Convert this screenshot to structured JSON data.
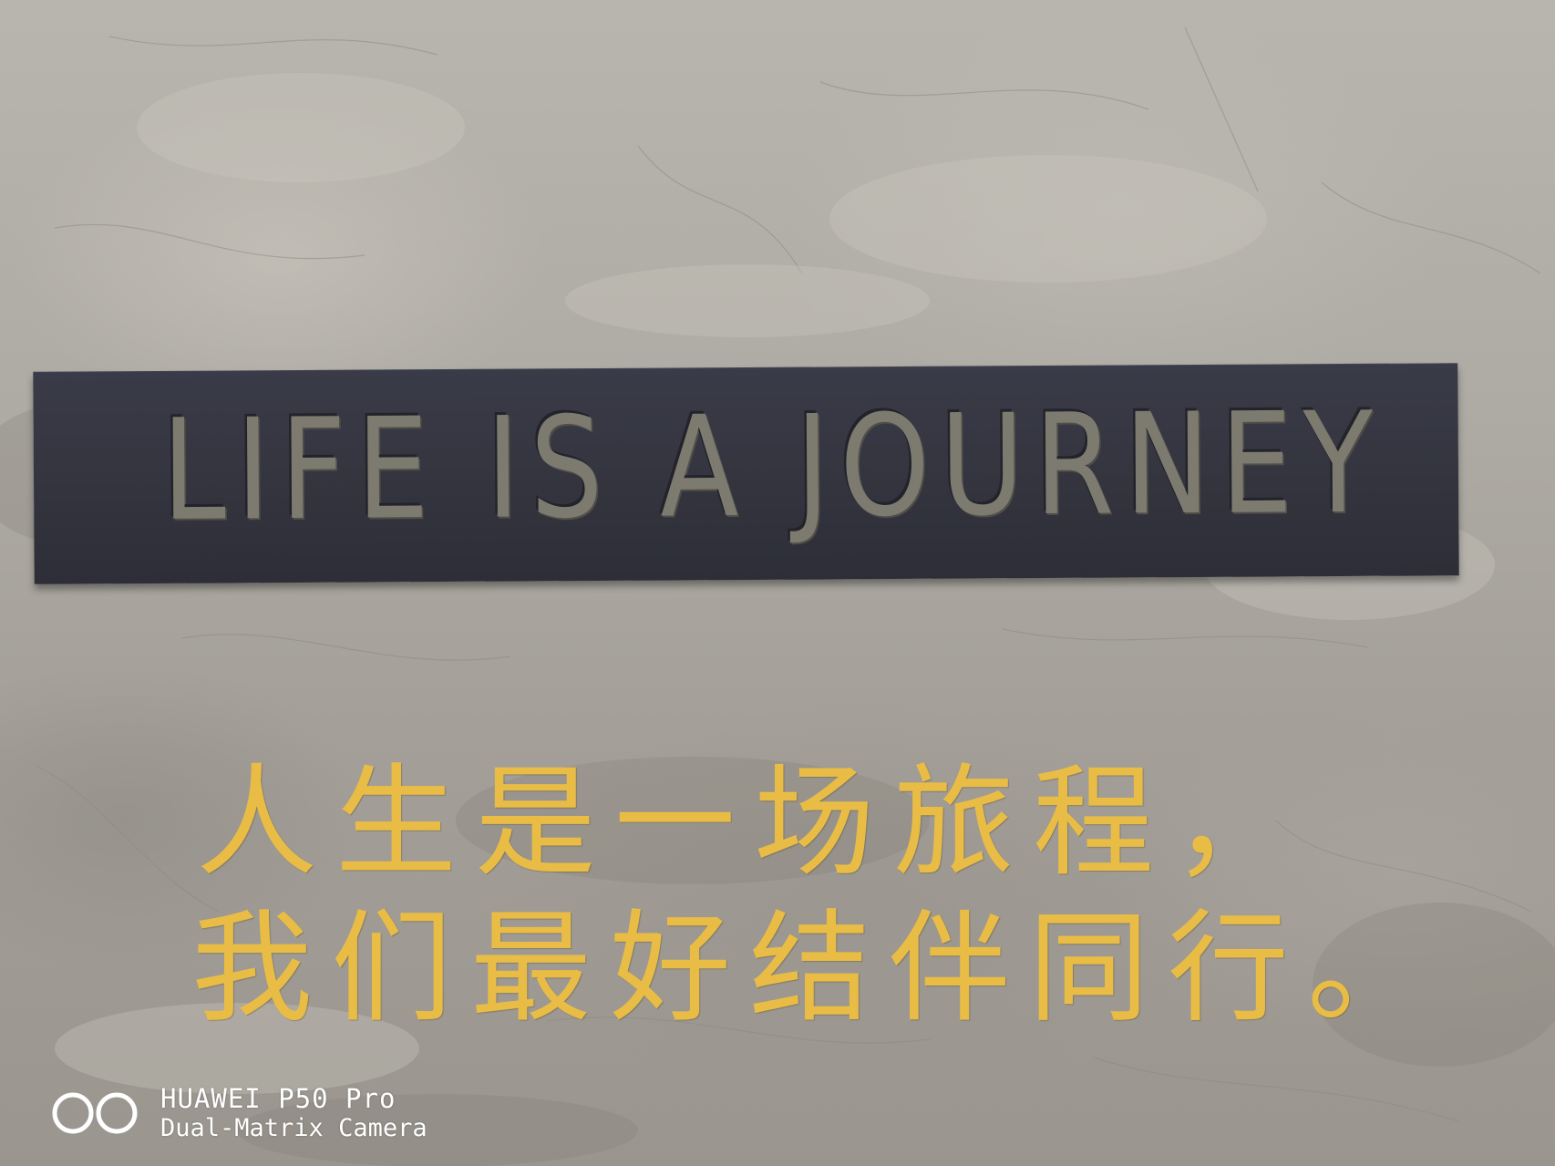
{
  "sign": {
    "text": "LIFE IS A JOURNEY"
  },
  "wall_text": {
    "line1": "人生是一场旅程，",
    "line2": "我们最好结伴同行。"
  },
  "watermark": {
    "model": "HUAWEI P50 Pro",
    "camera": "Dual-Matrix Camera",
    "icon": "dual-lens-icon"
  },
  "colors": {
    "wall": "#aeaba4",
    "sign": "#34353f",
    "wall_text": "#e9bd45",
    "watermark": "#ffffff"
  }
}
